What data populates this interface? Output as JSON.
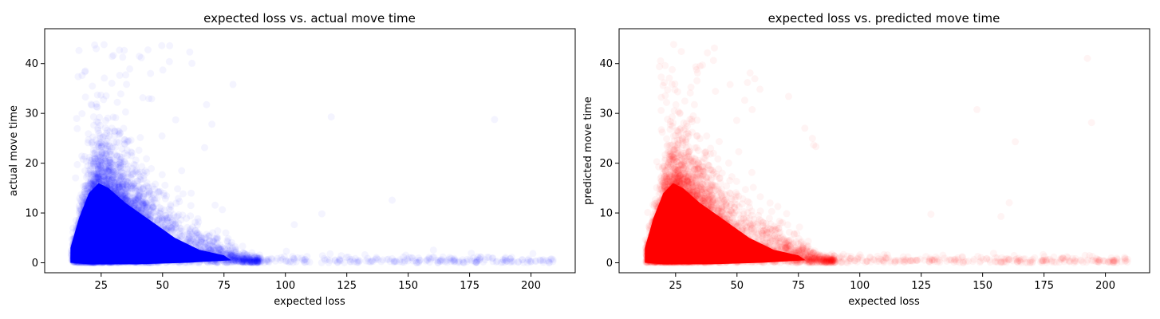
{
  "chart_data": [
    {
      "type": "scatter",
      "title": "expected loss vs. actual move time",
      "xlabel": "expected loss",
      "ylabel": "actual move time",
      "xlim": [
        2,
        218
      ],
      "ylim": [
        -2,
        47
      ],
      "xticks": [
        25,
        50,
        75,
        100,
        125,
        150,
        175,
        200
      ],
      "yticks": [
        0,
        10,
        20,
        30,
        40
      ],
      "grid": false,
      "series": [
        {
          "color": "#0000ff",
          "alpha": 0.02,
          "x": [],
          "y": []
        }
      ]
    },
    {
      "type": "scatter",
      "title": "expected loss vs. predicted move time",
      "xlabel": "expected loss",
      "ylabel": "predicted move time",
      "xlim": [
        2,
        218
      ],
      "ylim": [
        -2,
        47
      ],
      "xticks": [
        25,
        50,
        75,
        100,
        125,
        150,
        175,
        200
      ],
      "yticks": [
        0,
        10,
        20,
        30,
        40
      ],
      "grid": false,
      "series": [
        {
          "color": "#ff0000",
          "alpha": 0.02,
          "x": [],
          "y": []
        }
      ]
    }
  ]
}
